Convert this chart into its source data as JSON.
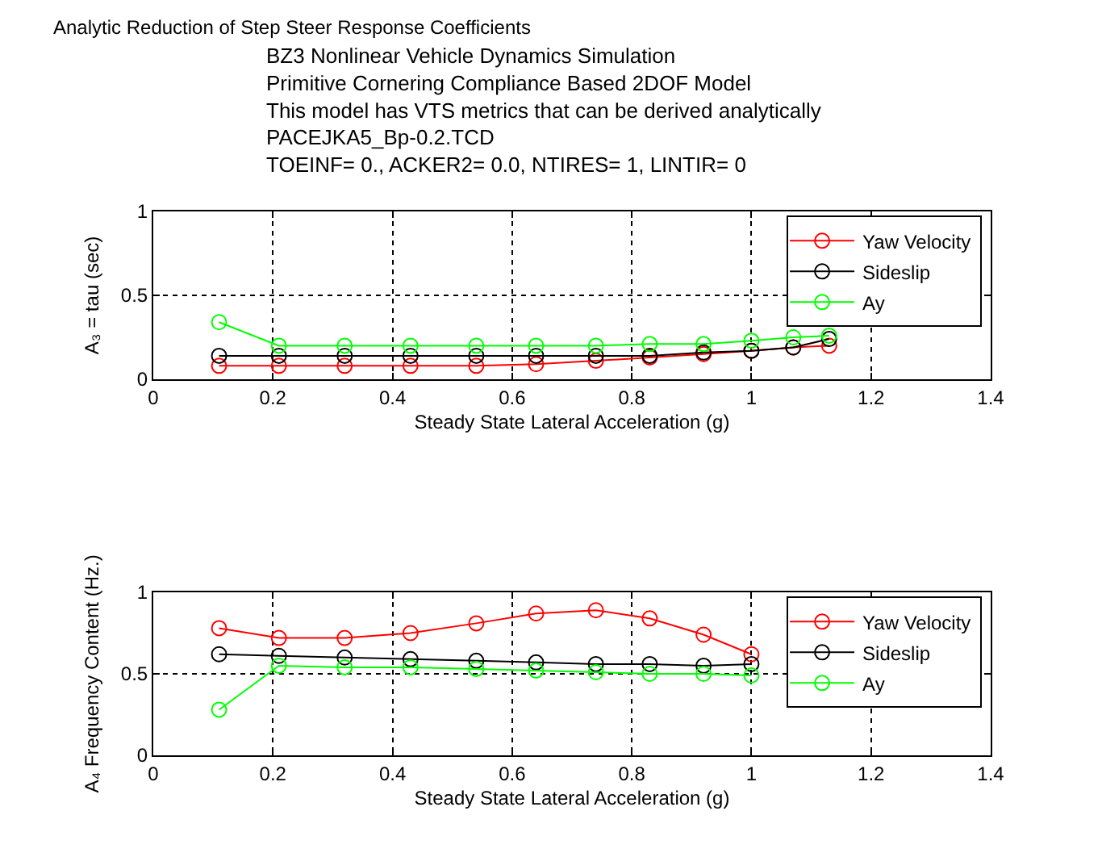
{
  "chart_data": [
    {
      "type": "line",
      "title": "BZ3 Nonlinear Vehicle Dynamics Simulation\nPrimitive Cornering Compliance Based 2DOF Model\nThis model has VTS metrics that can be derived analytically\nPACEJKA5_Bp-0.2.TCD\nTOEINF= 0., ACKER2= 0.0, NTIRES= 1, LINTIR= 0",
      "annotations": [
        "Analytic Reduction of Step Steer Response Coefficients"
      ],
      "xlabel": "Steady State Lateral Acceleration (g)",
      "ylabel": "A₃ = tau (sec)",
      "x": [
        0.11,
        0.21,
        0.32,
        0.43,
        0.54,
        0.64,
        0.74,
        0.83,
        0.92,
        1.0,
        1.07,
        1.13
      ],
      "series": [
        {
          "name": "Yaw Velocity",
          "color": "#ff0000",
          "values": [
            0.08,
            0.08,
            0.08,
            0.08,
            0.08,
            0.09,
            0.11,
            0.13,
            0.15,
            0.17,
            0.19,
            0.2
          ]
        },
        {
          "name": "Sideslip",
          "color": "#000000",
          "values": [
            0.14,
            0.14,
            0.14,
            0.14,
            0.14,
            0.14,
            0.14,
            0.14,
            0.16,
            0.17,
            0.19,
            0.24
          ]
        },
        {
          "name": "Ay",
          "color": "#00ff00",
          "values": [
            0.34,
            0.2,
            0.2,
            0.2,
            0.2,
            0.2,
            0.2,
            0.21,
            0.21,
            0.23,
            0.25,
            0.26
          ]
        }
      ],
      "xlim": [
        0,
        1.4
      ],
      "xticks": [
        0,
        0.2,
        0.4,
        0.6,
        0.8,
        1,
        1.2,
        1.4
      ],
      "ylim": [
        0,
        1
      ],
      "yticks": [
        0,
        0.5,
        1
      ],
      "grid": true,
      "legend": "top right",
      "marker": "circle",
      "line_style": "solid"
    },
    {
      "type": "line",
      "xlabel": "Steady State Lateral Acceleration (g)",
      "ylabel": "A₄ Frequency Content (Hz.)",
      "x": [
        0.11,
        0.21,
        0.32,
        0.43,
        0.54,
        0.64,
        0.74,
        0.83,
        0.92,
        1.0
      ],
      "series": [
        {
          "name": "Yaw Velocity",
          "color": "#ff0000",
          "values": [
            0.78,
            0.72,
            0.72,
            0.75,
            0.81,
            0.87,
            0.89,
            0.84,
            0.74,
            0.62
          ]
        },
        {
          "name": "Sideslip",
          "color": "#000000",
          "values": [
            0.62,
            0.61,
            0.6,
            0.59,
            0.58,
            0.57,
            0.56,
            0.56,
            0.55,
            0.56
          ]
        },
        {
          "name": "Ay",
          "color": "#00ff00",
          "values": [
            0.28,
            0.55,
            0.54,
            0.54,
            0.53,
            0.52,
            0.51,
            0.5,
            0.5,
            0.49
          ]
        }
      ],
      "xlim": [
        0,
        1.4
      ],
      "xticks": [
        0,
        0.2,
        0.4,
        0.6,
        0.8,
        1,
        1.2,
        1.4
      ],
      "ylim": [
        0,
        1
      ],
      "yticks": [
        0,
        0.5,
        1
      ],
      "grid": true,
      "legend": "top right",
      "marker": "circle",
      "line_style": "solid"
    }
  ]
}
